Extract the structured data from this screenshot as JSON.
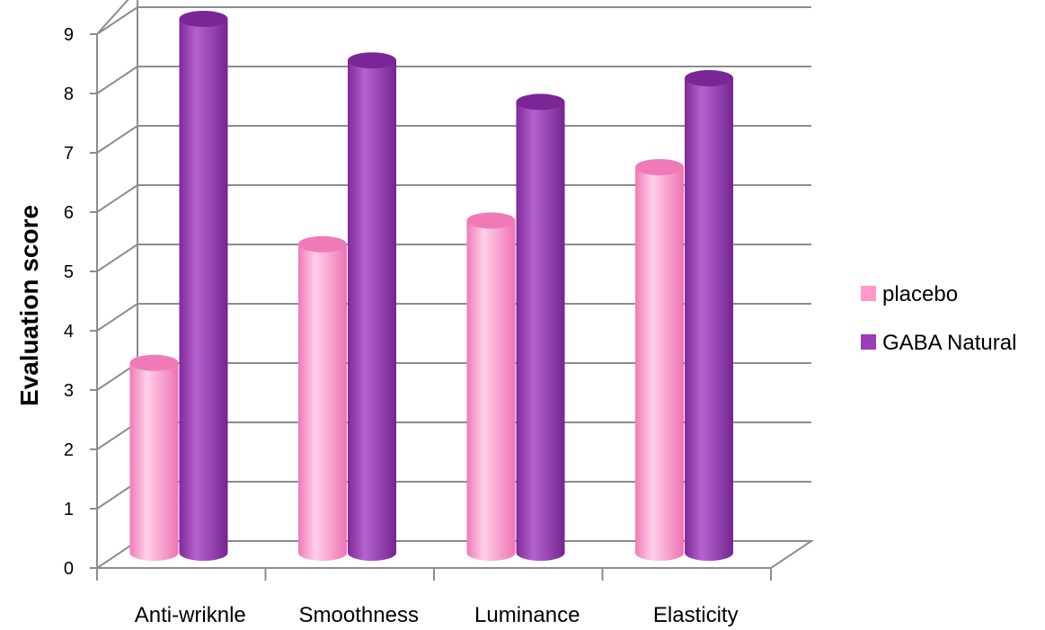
{
  "chart_data": {
    "type": "bar",
    "title": "",
    "xlabel": "",
    "ylabel": "Evaluation score",
    "ylim": [
      0,
      9
    ],
    "yticks": [
      0,
      1,
      2,
      3,
      4,
      5,
      6,
      7,
      8,
      9
    ],
    "categories": [
      "Anti-wriknle",
      "Smoothness",
      "Luminance",
      "Elasticity"
    ],
    "series": [
      {
        "name": "placebo",
        "values": [
          3.2,
          5.2,
          5.6,
          6.5
        ],
        "color": "#ff99cc"
      },
      {
        "name": "GABA Natural",
        "values": [
          9.0,
          8.3,
          7.6,
          8.0
        ],
        "color": "#9b3fb5"
      }
    ],
    "grid": true,
    "legend_position": "right",
    "style": "3d-cylinder"
  }
}
